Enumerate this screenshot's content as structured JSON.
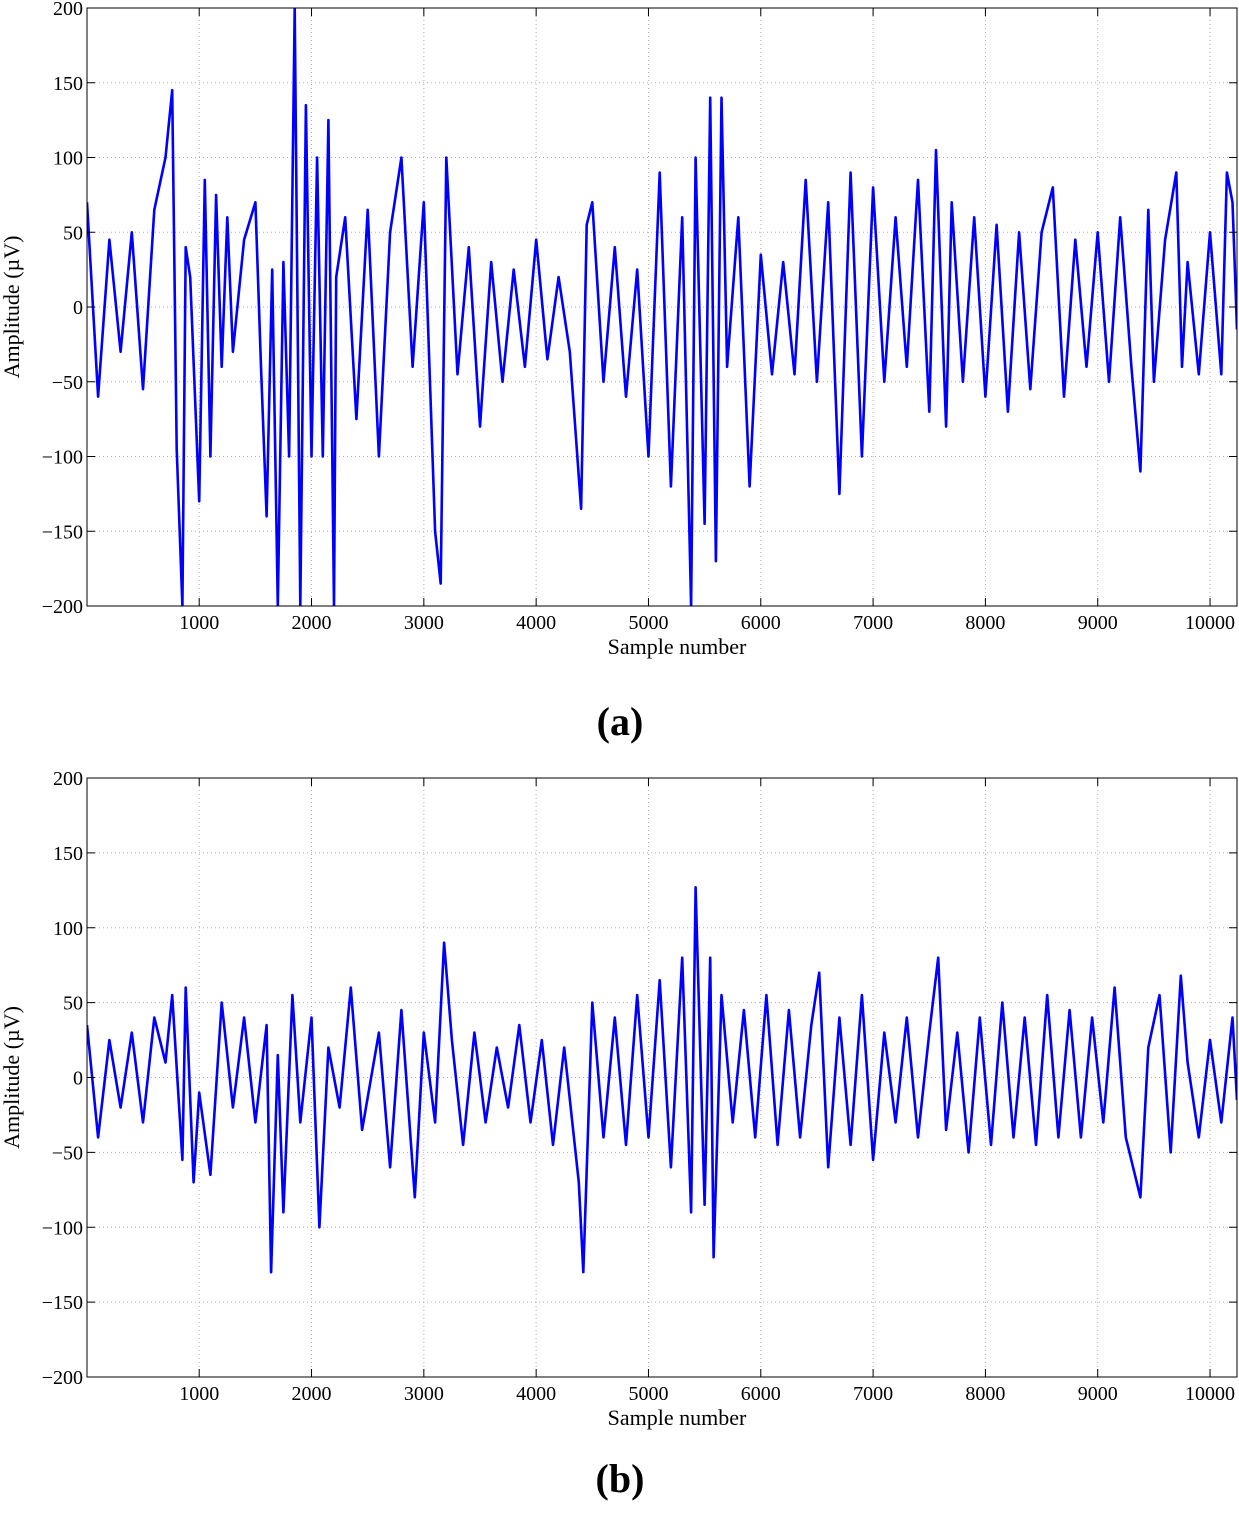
{
  "figure": {
    "panel_labels": [
      "(a)",
      "(b)"
    ]
  },
  "chart_data": [
    {
      "type": "line",
      "panel": "(a)",
      "xlabel": "Sample number",
      "ylabel": "Amplitude (µV)",
      "xlim": [
        1,
        10240
      ],
      "ylim": [
        -200,
        200
      ],
      "xticks": [
        1000,
        2000,
        3000,
        4000,
        5000,
        6000,
        7000,
        8000,
        9000,
        10000
      ],
      "yticks": [
        -200,
        -150,
        -100,
        -50,
        0,
        50,
        100,
        150,
        200
      ],
      "xtick_labels": [
        "1000",
        "2000",
        "3000",
        "4000",
        "5000",
        "6000",
        "7000",
        "8000",
        "9000",
        "10000"
      ],
      "ytick_labels": [
        "−200",
        "−150",
        "−100",
        "−50",
        "0",
        "50",
        "100",
        "150",
        "200"
      ],
      "grid": true,
      "color": "#0000ff",
      "series": [
        {
          "x": [
            1,
            100,
            200,
            300,
            400,
            500,
            600,
            700,
            760,
            800,
            850,
            880,
            920,
            1000,
            1050,
            1100,
            1150,
            1200,
            1250,
            1300,
            1400,
            1500,
            1550,
            1600,
            1650,
            1700,
            1750,
            1800,
            1850,
            1900,
            1950,
            2000,
            2050,
            2100,
            2150,
            2200,
            2220,
            2300,
            2400,
            2500,
            2600,
            2700,
            2800,
            2900,
            3000,
            3100,
            3150,
            3200,
            3300,
            3400,
            3500,
            3600,
            3700,
            3800,
            3900,
            4000,
            4100,
            4200,
            4300,
            4400,
            4450,
            4500,
            4600,
            4700,
            4800,
            4900,
            5000,
            5100,
            5200,
            5300,
            5380,
            5420,
            5500,
            5550,
            5600,
            5650,
            5700,
            5800,
            5900,
            6000,
            6100,
            6200,
            6300,
            6400,
            6500,
            6600,
            6700,
            6800,
            6900,
            7000,
            7100,
            7200,
            7300,
            7400,
            7500,
            7560,
            7650,
            7700,
            7800,
            7900,
            8000,
            8100,
            8200,
            8300,
            8400,
            8500,
            8600,
            8700,
            8800,
            8900,
            9000,
            9100,
            9200,
            9300,
            9380,
            9450,
            9500,
            9600,
            9700,
            9750,
            9800,
            9900,
            10000,
            10100,
            10150,
            10200,
            10240
          ],
          "y": [
            70,
            -60,
            45,
            -30,
            50,
            -55,
            65,
            100,
            145,
            -95,
            -200,
            40,
            20,
            -130,
            85,
            -100,
            75,
            -40,
            60,
            -30,
            45,
            70,
            -40,
            -140,
            25,
            -200,
            30,
            -100,
            200,
            -200,
            135,
            -100,
            100,
            -100,
            125,
            -200,
            20,
            60,
            -75,
            65,
            -100,
            50,
            100,
            -40,
            70,
            -150,
            -185,
            100,
            -45,
            40,
            -80,
            30,
            -50,
            25,
            -40,
            45,
            -35,
            20,
            -30,
            -135,
            55,
            70,
            -50,
            40,
            -60,
            25,
            -100,
            90,
            -120,
            60,
            -200,
            100,
            -145,
            140,
            -170,
            140,
            -40,
            60,
            -120,
            35,
            -45,
            30,
            -45,
            85,
            -50,
            70,
            -125,
            90,
            -100,
            80,
            -50,
            60,
            -40,
            85,
            -70,
            105,
            -80,
            70,
            -50,
            60,
            -60,
            55,
            -70,
            50,
            -55,
            50,
            80,
            -60,
            45,
            -40,
            50,
            -50,
            60,
            -40,
            -110,
            65,
            -50,
            45,
            90,
            -40,
            30,
            -45,
            50,
            -45,
            90,
            70,
            -15
          ]
        }
      ]
    },
    {
      "type": "line",
      "panel": "(b)",
      "xlabel": "Sample number",
      "ylabel": "Amplitude (µV)",
      "xlim": [
        1,
        10240
      ],
      "ylim": [
        -200,
        200
      ],
      "xticks": [
        1000,
        2000,
        3000,
        4000,
        5000,
        6000,
        7000,
        8000,
        9000,
        10000
      ],
      "yticks": [
        -200,
        -150,
        -100,
        -50,
        0,
        50,
        100,
        150,
        200
      ],
      "xtick_labels": [
        "1000",
        "2000",
        "3000",
        "4000",
        "5000",
        "6000",
        "7000",
        "8000",
        "9000",
        "10000"
      ],
      "ytick_labels": [
        "−200",
        "−150",
        "−100",
        "−50",
        "0",
        "50",
        "100",
        "150",
        "200"
      ],
      "grid": true,
      "color": "#0000ff",
      "series": [
        {
          "x": [
            1,
            100,
            200,
            300,
            400,
            500,
            600,
            700,
            760,
            850,
            880,
            950,
            1000,
            1100,
            1200,
            1300,
            1400,
            1500,
            1600,
            1640,
            1700,
            1750,
            1830,
            1900,
            2000,
            2070,
            2150,
            2250,
            2350,
            2450,
            2600,
            2700,
            2800,
            2920,
            3000,
            3100,
            3180,
            3250,
            3350,
            3450,
            3550,
            3650,
            3750,
            3850,
            3950,
            4050,
            4150,
            4250,
            4380,
            4420,
            4500,
            4600,
            4700,
            4800,
            4900,
            5000,
            5100,
            5200,
            5300,
            5380,
            5420,
            5500,
            5550,
            5580,
            5650,
            5750,
            5850,
            5950,
            6050,
            6150,
            6250,
            6350,
            6450,
            6520,
            6600,
            6700,
            6800,
            6900,
            7000,
            7100,
            7200,
            7300,
            7400,
            7500,
            7580,
            7650,
            7750,
            7850,
            7950,
            8050,
            8150,
            8250,
            8350,
            8450,
            8550,
            8650,
            8750,
            8850,
            8950,
            9050,
            9150,
            9250,
            9380,
            9450,
            9550,
            9650,
            9740,
            9800,
            9900,
            10000,
            10100,
            10200,
            10240
          ],
          "y": [
            35,
            -40,
            25,
            -20,
            30,
            -30,
            40,
            10,
            55,
            -55,
            60,
            -70,
            -10,
            -65,
            50,
            -20,
            40,
            -30,
            35,
            -130,
            15,
            -90,
            55,
            -30,
            40,
            -100,
            20,
            -20,
            60,
            -35,
            30,
            -60,
            45,
            -80,
            30,
            -30,
            90,
            25,
            -45,
            30,
            -30,
            20,
            -20,
            35,
            -30,
            25,
            -45,
            20,
            -70,
            -130,
            50,
            -40,
            40,
            -45,
            55,
            -40,
            65,
            -60,
            80,
            -90,
            127,
            -85,
            80,
            -120,
            55,
            -30,
            45,
            -40,
            55,
            -45,
            45,
            -40,
            35,
            70,
            -60,
            40,
            -45,
            55,
            -55,
            30,
            -30,
            40,
            -40,
            30,
            80,
            -35,
            30,
            -50,
            40,
            -45,
            50,
            -40,
            40,
            -45,
            55,
            -40,
            45,
            -40,
            40,
            -30,
            60,
            -40,
            -80,
            20,
            55,
            -50,
            68,
            10,
            -40,
            25,
            -30,
            40,
            -15
          ]
        }
      ]
    }
  ]
}
